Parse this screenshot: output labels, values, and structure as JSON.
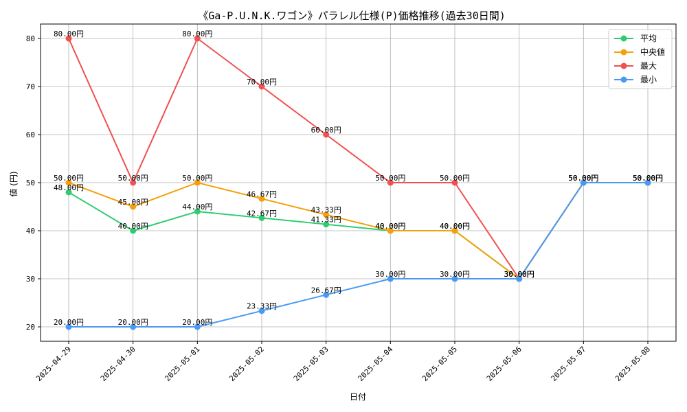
{
  "chart_data": {
    "type": "line",
    "title": "《Ga-P.U.N.K.ワゴン》パラレル仕様(P)価格推移(過去30日間)",
    "xlabel": "日付",
    "ylabel": "値 (円)",
    "ylim": [
      17,
      83
    ],
    "yticks": [
      20,
      30,
      40,
      50,
      60,
      70,
      80
    ],
    "grid": true,
    "legend_position": "top-right",
    "label_suffix": "円",
    "x": [
      "2025-04-29",
      "2025-04-30",
      "2025-05-01",
      "2025-05-02",
      "2025-05-03",
      "2025-05-04",
      "2025-05-05",
      "2025-05-06",
      "2025-05-07",
      "2025-05-08"
    ],
    "series": [
      {
        "name": "平均",
        "color": "#2ecc71",
        "values": [
          48.0,
          40.0,
          44.0,
          42.67,
          41.33,
          40.0,
          40.0,
          30.0,
          50.0,
          50.0
        ]
      },
      {
        "name": "中央値",
        "color": "#f5a00a",
        "values": [
          50.0,
          45.0,
          50.0,
          46.67,
          43.33,
          40.0,
          40.0,
          30.0,
          50.0,
          50.0
        ]
      },
      {
        "name": "最大",
        "color": "#f05050",
        "values": [
          80.0,
          50.0,
          80.0,
          70.0,
          60.0,
          50.0,
          50.0,
          30.0,
          50.0,
          50.0
        ]
      },
      {
        "name": "最小",
        "color": "#4a9af5",
        "values": [
          20.0,
          20.0,
          20.0,
          23.33,
          26.67,
          30.0,
          30.0,
          30.0,
          50.0,
          50.0
        ]
      }
    ]
  }
}
